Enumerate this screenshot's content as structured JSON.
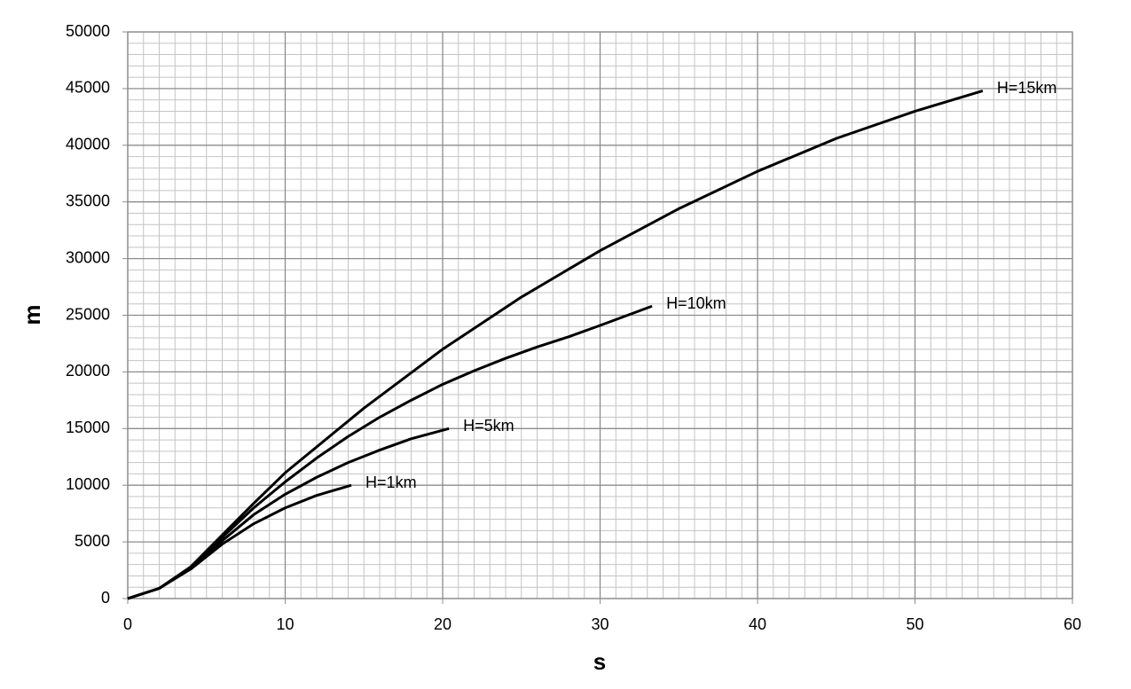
{
  "chart_data": {
    "type": "line",
    "xlabel": "s",
    "ylabel": "m",
    "xlim": [
      0,
      60
    ],
    "xticks": [
      0,
      10,
      20,
      30,
      40,
      50,
      60
    ],
    "ylim": [
      0,
      50000
    ],
    "yticks": [
      0,
      5000,
      10000,
      15000,
      20000,
      25000,
      30000,
      35000,
      40000,
      45000,
      50000
    ],
    "grid": true,
    "series": [
      {
        "name": "H=1km",
        "color": "#000000",
        "x": [
          0,
          2,
          4,
          6,
          8,
          10,
          12,
          14.2
        ],
        "values": [
          0,
          900,
          2600,
          4800,
          6600,
          8000,
          9100,
          10000
        ]
      },
      {
        "name": "H=5km",
        "color": "#000000",
        "x": [
          0,
          2,
          4,
          6,
          8,
          10,
          12,
          14,
          16,
          18,
          20.4
        ],
        "values": [
          0,
          900,
          2700,
          5100,
          7400,
          9200,
          10700,
          12000,
          13100,
          14100,
          15000
        ]
      },
      {
        "name": "H=10km",
        "color": "#000000",
        "x": [
          0,
          2,
          4,
          6,
          8,
          10,
          12,
          14,
          16,
          18,
          20,
          22,
          24,
          26,
          28,
          30,
          33.3
        ],
        "values": [
          0,
          900,
          2750,
          5400,
          8000,
          10300,
          12400,
          14300,
          16000,
          17500,
          18900,
          20100,
          21200,
          22200,
          23100,
          24100,
          25800
        ]
      },
      {
        "name": "H=15km",
        "color": "#000000",
        "x": [
          0,
          2,
          4,
          6,
          8,
          10,
          15,
          20,
          25,
          30,
          35,
          40,
          45,
          50,
          54.3
        ],
        "values": [
          0,
          900,
          2800,
          5600,
          8400,
          11100,
          16800,
          22000,
          26600,
          30700,
          34400,
          37700,
          40600,
          43000,
          44800
        ]
      }
    ]
  }
}
